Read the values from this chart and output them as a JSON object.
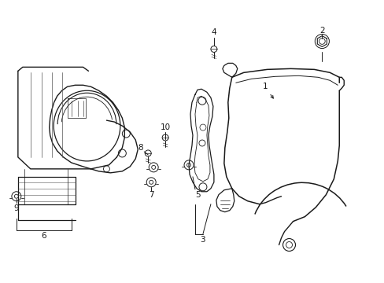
{
  "bg_color": "#ffffff",
  "line_color": "#1a1a1a",
  "figsize": [
    4.89,
    3.6
  ],
  "dpi": 100
}
